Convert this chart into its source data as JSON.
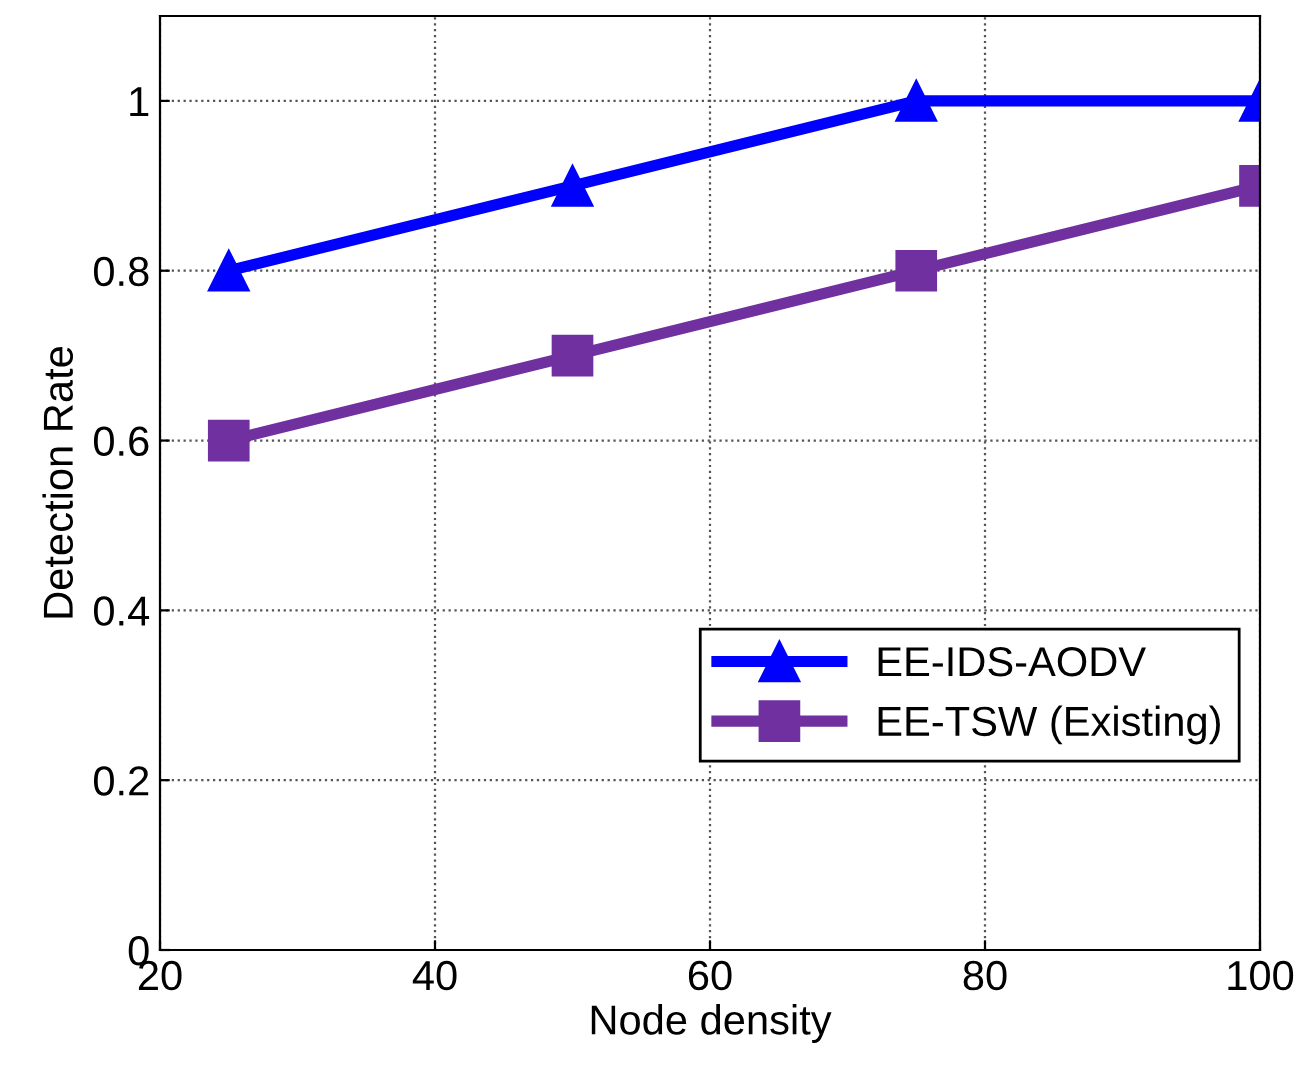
{
  "chart_data": {
    "type": "line",
    "xlabel": "Node density",
    "ylabel": "Detection Rate",
    "x": [
      25,
      50,
      75,
      100
    ],
    "series": [
      {
        "name": "EE-IDS-AODV",
        "color": "#0000ff",
        "values": [
          0.8,
          0.9,
          1.0,
          1.0
        ],
        "marker": "triangle"
      },
      {
        "name": "EE-TSW (Existing)",
        "color": "#7030a0",
        "values": [
          0.6,
          0.7,
          0.8,
          0.9
        ],
        "marker": "square"
      }
    ],
    "xlim": [
      20,
      100
    ],
    "xticks": [
      20,
      40,
      60,
      80,
      100
    ],
    "ylim": [
      0,
      1.1
    ],
    "yticks": [
      0,
      0.2,
      0.4,
      0.6,
      0.8,
      1
    ],
    "grid": true,
    "legend": "bottom right",
    "line_style": "solid"
  }
}
